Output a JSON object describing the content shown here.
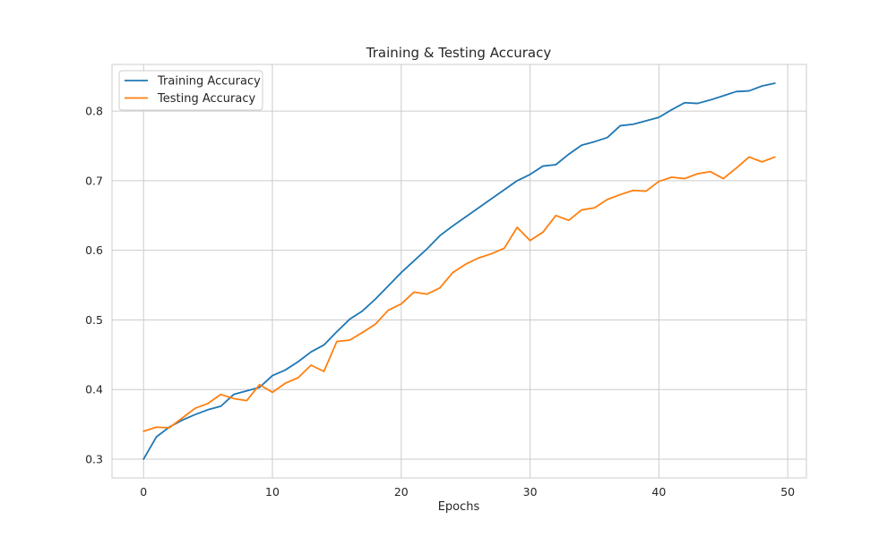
{
  "chart_data": {
    "type": "line",
    "title": "Training & Testing Accuracy",
    "xlabel": "Epochs",
    "ylabel": "",
    "xlim": [
      -2.45,
      51.45
    ],
    "ylim": [
      0.273,
      0.867
    ],
    "xticks": [
      0,
      10,
      20,
      30,
      40,
      50
    ],
    "yticks": [
      0.3,
      0.4,
      0.5,
      0.6,
      0.7,
      0.8
    ],
    "grid": true,
    "legend_position": "top-left",
    "x": [
      0,
      1,
      2,
      3,
      4,
      5,
      6,
      7,
      8,
      9,
      10,
      11,
      12,
      13,
      14,
      15,
      16,
      17,
      18,
      19,
      20,
      21,
      22,
      23,
      24,
      25,
      26,
      27,
      28,
      29,
      30,
      31,
      32,
      33,
      34,
      35,
      36,
      37,
      38,
      39,
      40,
      41,
      42,
      43,
      44,
      45,
      46,
      47,
      48,
      49
    ],
    "series": [
      {
        "name": "Training Accuracy",
        "color": "#1f77b4",
        "values": [
          0.3,
          0.332,
          0.346,
          0.356,
          0.364,
          0.371,
          0.376,
          0.393,
          0.398,
          0.403,
          0.42,
          0.428,
          0.44,
          0.454,
          0.464,
          0.483,
          0.501,
          0.513,
          0.53,
          0.549,
          0.568,
          0.585,
          0.602,
          0.621,
          0.635,
          0.648,
          0.661,
          0.674,
          0.687,
          0.7,
          0.709,
          0.721,
          0.723,
          0.738,
          0.751,
          0.756,
          0.762,
          0.779,
          0.781,
          0.786,
          0.791,
          0.802,
          0.812,
          0.811,
          0.816,
          0.822,
          0.828,
          0.829,
          0.836,
          0.84
        ]
      },
      {
        "name": "Testing Accuracy",
        "color": "#ff7f0e",
        "values": [
          0.34,
          0.346,
          0.345,
          0.359,
          0.373,
          0.38,
          0.393,
          0.387,
          0.384,
          0.407,
          0.396,
          0.409,
          0.417,
          0.435,
          0.426,
          0.469,
          0.471,
          0.482,
          0.494,
          0.514,
          0.523,
          0.54,
          0.537,
          0.546,
          0.568,
          0.58,
          0.589,
          0.595,
          0.603,
          0.633,
          0.614,
          0.626,
          0.65,
          0.643,
          0.658,
          0.661,
          0.673,
          0.68,
          0.686,
          0.685,
          0.699,
          0.705,
          0.703,
          0.71,
          0.713,
          0.703,
          0.718,
          0.734,
          0.727,
          0.734
        ]
      }
    ]
  }
}
